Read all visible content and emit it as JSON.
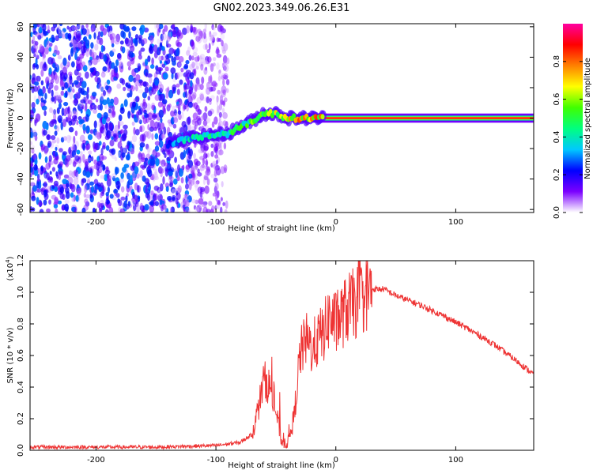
{
  "title": "GN02.2023.349.06.26.E31",
  "chart_data": [
    {
      "type": "heatmap",
      "title": "GN02.2023.349.06.26.E31",
      "xlabel": "Height of straight line (km)",
      "ylabel": "Frequency (Hz)",
      "xlim": [
        -255,
        165
      ],
      "ylim": [
        -62,
        62
      ],
      "x_ticks": [
        -200,
        -100,
        0,
        100
      ],
      "x_tick_labels": [
        "-200",
        "-100",
        "0",
        "100"
      ],
      "y_ticks": [
        -60,
        -40,
        -20,
        0,
        20,
        40,
        60
      ],
      "y_tick_labels": [
        "-60",
        "-40",
        "-20",
        "0",
        "20",
        "40",
        "60"
      ],
      "colorbar": {
        "label": "Normalized spectral amplitude",
        "range": [
          0,
          1
        ],
        "ticks": [
          0.0,
          0.2,
          0.4,
          0.6,
          0.8
        ],
        "tick_labels": [
          "0.0",
          "0.2",
          "0.4",
          "0.6",
          "0.8"
        ],
        "colors": [
          "#ffffff",
          "#7b00ff",
          "#0000ff",
          "#00c8ff",
          "#00ff80",
          "#40ff00",
          "#ffff00",
          "#ff8000",
          "#ff0000",
          "#ff00a0"
        ]
      },
      "ridge": {
        "x": [
          -140,
          -130,
          -120,
          -110,
          -100,
          -90,
          -80,
          -70,
          -60,
          -50,
          -40,
          -30,
          -20,
          -10,
          0,
          50,
          100,
          165
        ],
        "frequency": [
          -17,
          -15,
          -13,
          -12,
          -11,
          -10,
          -6,
          -2,
          3,
          3,
          0,
          0,
          0,
          0,
          0,
          0,
          0,
          0
        ],
        "amplitude": [
          0.35,
          0.45,
          0.5,
          0.5,
          0.55,
          0.6,
          0.6,
          0.65,
          0.75,
          0.8,
          0.85,
          0.9,
          0.9,
          0.92,
          0.95,
          0.97,
          0.98,
          0.98
        ]
      },
      "noise_region_x": [
        -255,
        -90
      ]
    },
    {
      "type": "line",
      "xlabel": "Height of straight line (km)",
      "ylabel": "SNR (10 * v/v)",
      "y_multiplier": "(x10",
      "y_multiplier_exp": "4",
      "y_multiplier_close": ")",
      "xlim": [
        -255,
        165
      ],
      "ylim": [
        0,
        1.2
      ],
      "x_ticks": [
        -200,
        -100,
        0,
        100
      ],
      "x_tick_labels": [
        "-200",
        "-100",
        "0",
        "100"
      ],
      "y_ticks": [
        0.0,
        0.2,
        0.4,
        0.6,
        0.8,
        1.0,
        1.2
      ],
      "y_tick_labels": [
        "0.0",
        "0.2",
        "0.4",
        "0.6",
        "0.8",
        "1.0",
        "1.2"
      ],
      "color": "#ee3333",
      "series": [
        {
          "x": [
            -255,
            -150,
            -100,
            -80,
            -70,
            -65,
            -60,
            -55,
            -50,
            -45,
            -40,
            -35,
            -30,
            -25,
            -20,
            -15,
            -10,
            -5,
            0,
            10,
            20,
            30,
            40,
            50,
            70,
            90,
            110,
            130,
            150,
            165
          ],
          "values": [
            0.02,
            0.02,
            0.03,
            0.05,
            0.1,
            0.25,
            0.45,
            0.4,
            0.25,
            0.05,
            0.05,
            0.2,
            0.6,
            0.7,
            0.65,
            0.7,
            0.75,
            0.85,
            0.8,
            0.9,
            0.95,
            1.02,
            1.02,
            0.98,
            0.92,
            0.85,
            0.77,
            0.68,
            0.57,
            0.48
          ]
        }
      ]
    }
  ]
}
